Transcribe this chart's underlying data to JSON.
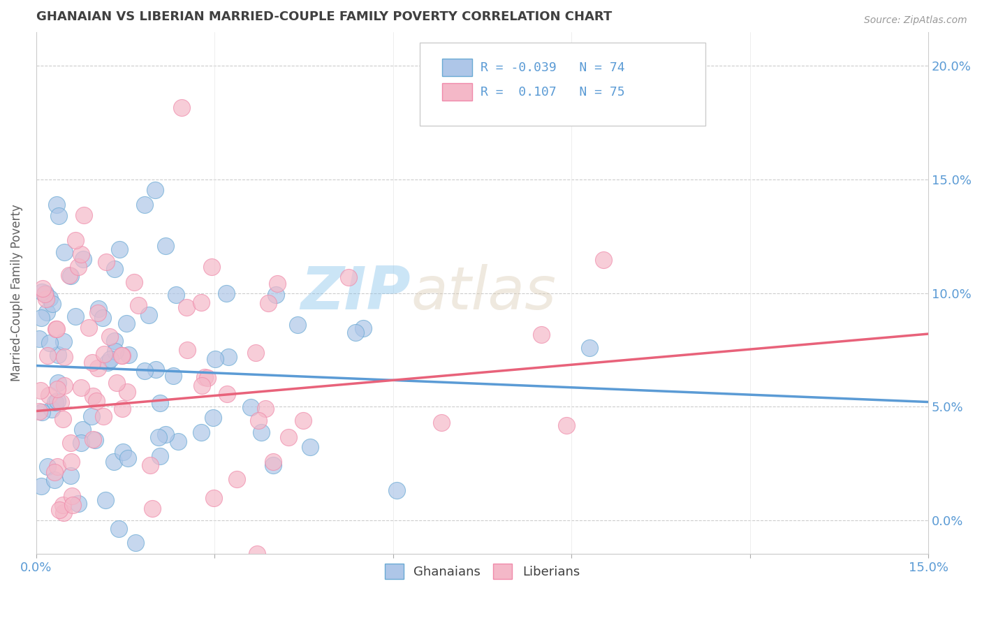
{
  "title": "GHANAIAN VS LIBERIAN MARRIED-COUPLE FAMILY POVERTY CORRELATION CHART",
  "source_text": "Source: ZipAtlas.com",
  "ylabel": "Married-Couple Family Poverty",
  "xlim": [
    0.0,
    0.15
  ],
  "ylim": [
    -0.015,
    0.215
  ],
  "xticks": [
    0.0,
    0.03,
    0.06,
    0.09,
    0.12,
    0.15
  ],
  "xticklabels": [
    "0.0%",
    "",
    "",
    "",
    "",
    "15.0%"
  ],
  "yticks": [
    0.0,
    0.05,
    0.1,
    0.15,
    0.2
  ],
  "yticklabels": [
    "0.0%",
    "5.0%",
    "10.0%",
    "15.0%",
    "20.0%"
  ],
  "ghanaian_color": "#aec6e8",
  "liberian_color": "#f4b8c8",
  "ghanaian_edge_color": "#6aaad4",
  "liberian_edge_color": "#f08aaa",
  "ghanaian_line_color": "#5b9bd5",
  "liberian_line_color": "#e8627a",
  "R_ghanaian": -0.039,
  "N_ghanaian": 74,
  "R_liberian": 0.107,
  "N_liberian": 75,
  "watermark": "ZIPatlas",
  "watermark_color": "#d0d0d0",
  "legend_label_ghanaian": "Ghanaians",
  "legend_label_liberian": "Liberians",
  "background_color": "#ffffff",
  "grid_color": "#cccccc",
  "title_color": "#404040",
  "axis_label_color": "#606060",
  "tick_color": "#5b9bd5",
  "legend_R_color": "#5b9bd5",
  "trend_line_start_x": 0.0,
  "trend_line_end_x": 0.15,
  "ghanaian_trend_start_y": 0.068,
  "ghanaian_trend_end_y": 0.052,
  "liberian_trend_start_y": 0.048,
  "liberian_trend_end_y": 0.082
}
